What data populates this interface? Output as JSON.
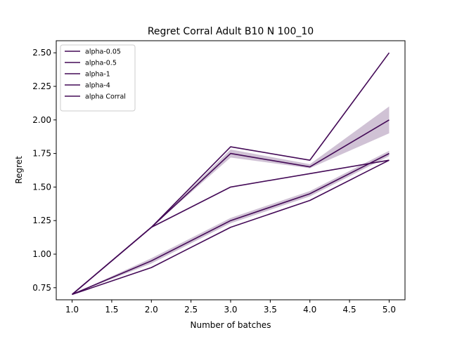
{
  "chart_data": {
    "type": "line",
    "title": "Regret Corral Adult B10 N 100_10",
    "xlabel": "Number of batches",
    "ylabel": "Regret",
    "xlim": [
      0.8,
      5.2
    ],
    "ylim": [
      0.66,
      2.59
    ],
    "xticks": [
      1.0,
      1.5,
      2.0,
      2.5,
      3.0,
      3.5,
      4.0,
      4.5,
      5.0
    ],
    "xtick_labels": [
      "1.0",
      "1.5",
      "2.0",
      "2.5",
      "3.0",
      "3.5",
      "4.0",
      "4.5",
      "5.0"
    ],
    "yticks": [
      0.75,
      1.0,
      1.25,
      1.5,
      1.75,
      2.0,
      2.25,
      2.5
    ],
    "ytick_labels": [
      "0.75",
      "1.00",
      "1.25",
      "1.50",
      "1.75",
      "2.00",
      "2.25",
      "2.50"
    ],
    "grid": false,
    "legend_position": "top-left",
    "line_color": "#440a57",
    "band_color": "#440a57",
    "x": [
      1,
      2,
      3,
      4,
      5
    ],
    "series": [
      {
        "name": "alpha-0.05",
        "values": [
          0.7,
          1.2,
          1.8,
          1.7,
          2.5
        ]
      },
      {
        "name": "alpha-0.5",
        "values": [
          0.7,
          1.2,
          1.75,
          1.65,
          2.0
        ],
        "band_lower": [
          0.7,
          1.2,
          1.72,
          1.64,
          1.9
        ],
        "band_upper": [
          0.7,
          1.2,
          1.78,
          1.67,
          2.1
        ]
      },
      {
        "name": "alpha-1",
        "values": [
          0.7,
          0.95,
          1.25,
          1.45,
          1.75
        ],
        "band_lower": [
          0.7,
          0.93,
          1.23,
          1.43,
          1.73
        ],
        "band_upper": [
          0.7,
          0.97,
          1.27,
          1.47,
          1.77
        ]
      },
      {
        "name": "alpha-4",
        "values": [
          0.7,
          0.9,
          1.2,
          1.4,
          1.7
        ]
      },
      {
        "name": "alpha Corral",
        "values": [
          0.7,
          1.2,
          1.5,
          1.6,
          1.7
        ]
      }
    ]
  }
}
